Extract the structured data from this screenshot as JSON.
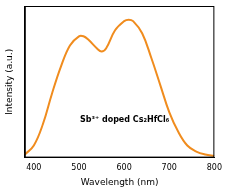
{
  "chart_data": {
    "type": "line",
    "x_label": "Wavelength (nm)",
    "y_label": "Intensity (a.u.)",
    "x": [
      380,
      400,
      420,
      440,
      460,
      480,
      500,
      510,
      520,
      540,
      550,
      560,
      580,
      600,
      610,
      620,
      640,
      660,
      680,
      700,
      720,
      740,
      760,
      780,
      800
    ],
    "values": [
      0.02,
      0.08,
      0.22,
      0.42,
      0.6,
      0.74,
      0.8,
      0.8,
      0.78,
      0.72,
      0.7,
      0.72,
      0.84,
      0.9,
      0.91,
      0.9,
      0.82,
      0.66,
      0.48,
      0.3,
      0.17,
      0.08,
      0.04,
      0.02,
      0.01
    ],
    "color": "#f08c1e",
    "xlim": [
      380,
      800
    ],
    "xticks": [
      400,
      500,
      600,
      700,
      800
    ],
    "ylim": [
      0,
      1
    ],
    "yticks": [],
    "tick_labels": "x",
    "grid": false,
    "annotations": [
      {
        "text": "Sb³⁺ doped Cs₂HfCl₆"
      }
    ]
  }
}
